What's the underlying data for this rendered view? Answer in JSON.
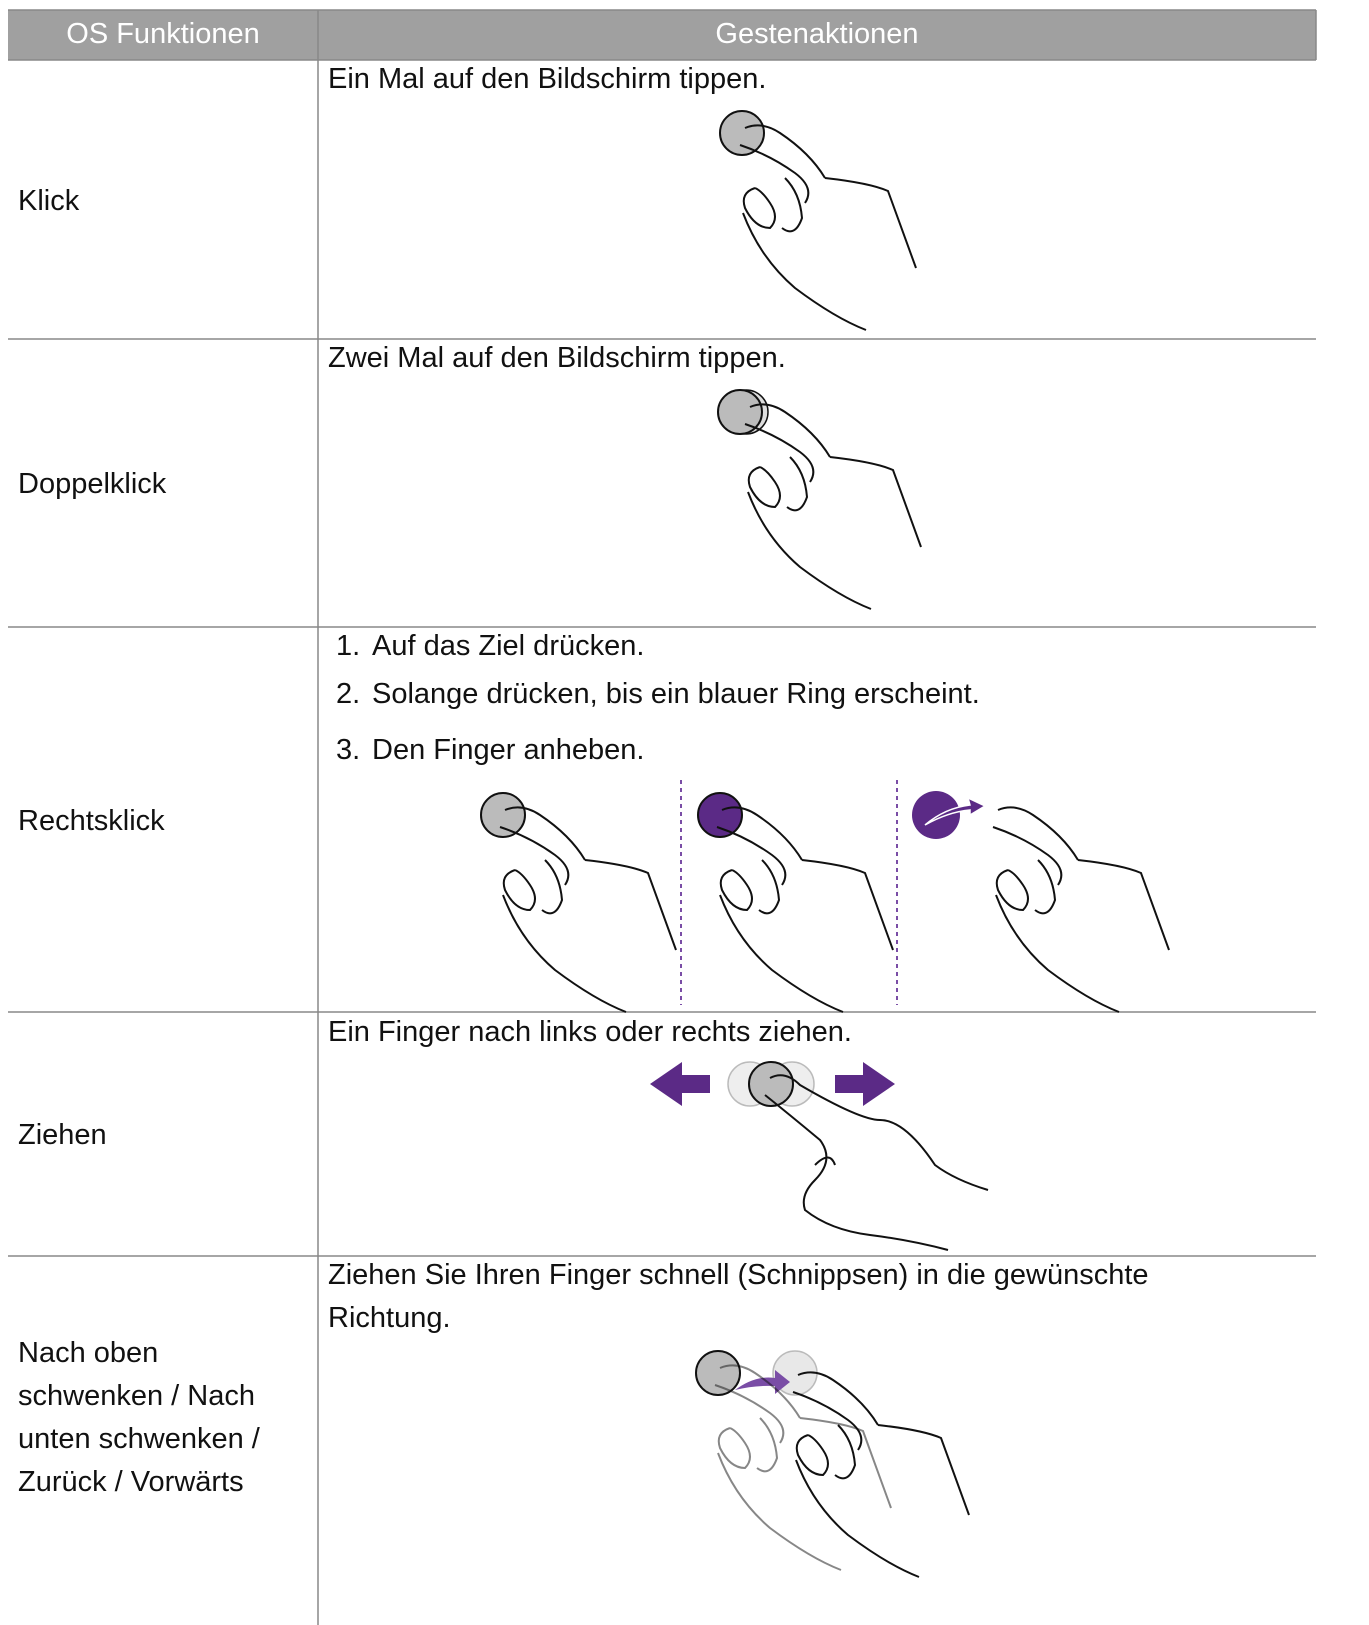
{
  "table": {
    "header": [
      "OS Funktionen",
      "Gestenaktionen"
    ],
    "rows": [
      {
        "function": "Klick",
        "action": "Ein Mal auf den Bildschirm tippen."
      },
      {
        "function": "Doppelklick",
        "action": "Zwei Mal auf den Bildschirm tippen."
      },
      {
        "function": "Rechtsklick",
        "steps": [
          {
            "number": "1.",
            "text": "Auf das Ziel drücken."
          },
          {
            "number": "2.",
            "text": "Solange drücken, bis ein blauer Ring erscheint."
          },
          {
            "number": "3.",
            "text": "Den Finger anheben."
          }
        ]
      },
      {
        "function": "Ziehen",
        "action": "Ein Finger nach links oder rechts ziehen."
      },
      {
        "function": "Nach oben schwenken / Nach unten schwenken / Zurück / Vorwärts",
        "action": "Ziehen Sie Ihren Finger schnell (Schnippsen) in die gewünschte Richtung."
      }
    ]
  }
}
